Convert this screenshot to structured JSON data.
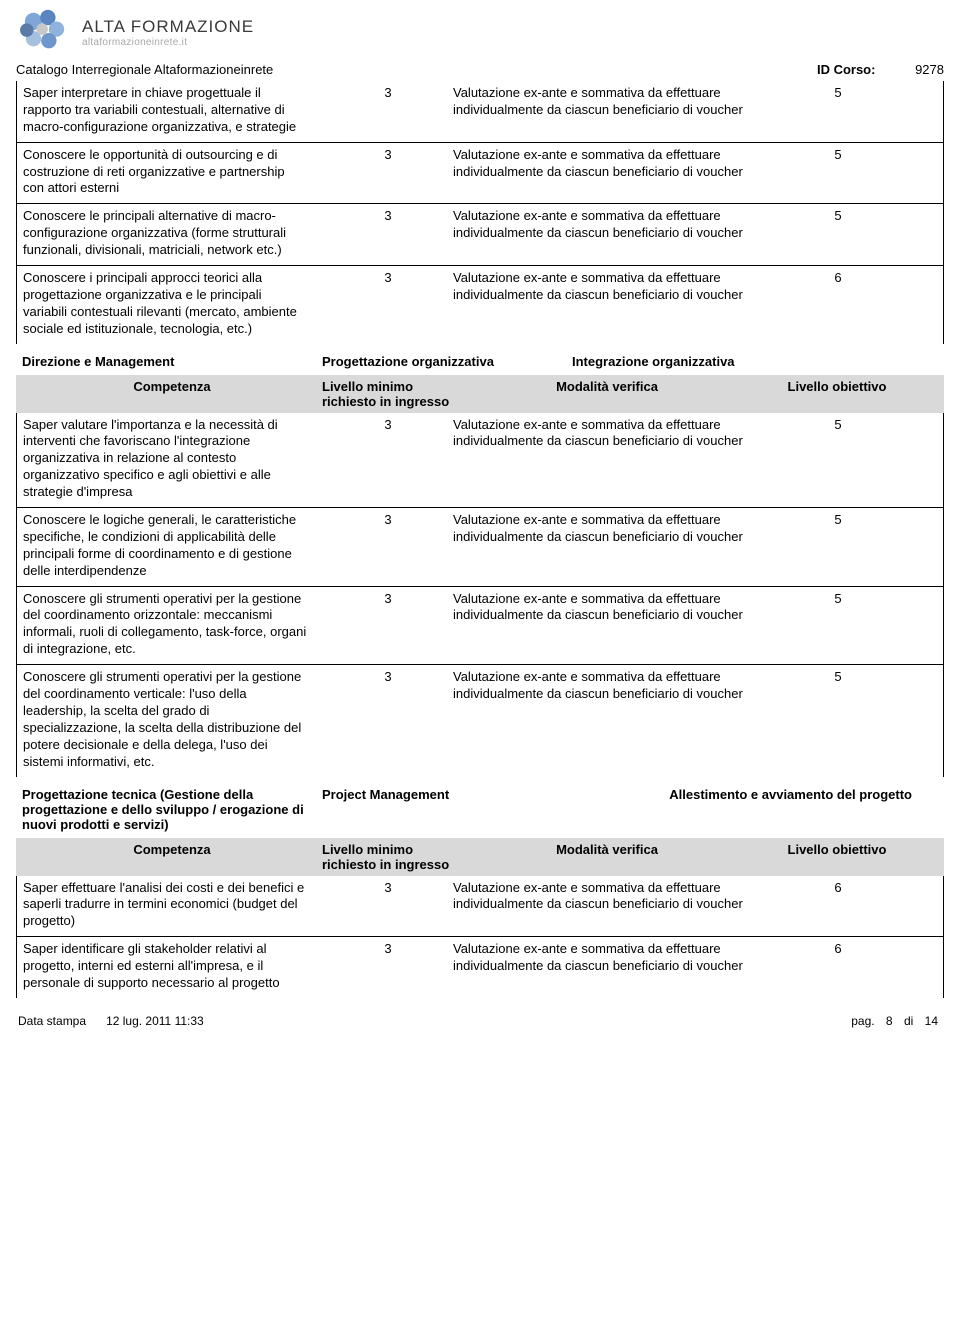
{
  "brand_main": "ALTA FORMAZIONE",
  "brand_sub": "altaformazioneinrete.it",
  "catalog_title": "Catalogo Interregionale Altaformazioneinrete",
  "id_corso_label": "ID Corso:",
  "id_corso_value": "9278",
  "verif_text": "Valutazione ex-ante e sommativa da effettuare individualmente da ciascun beneficiario di voucher",
  "top_rows": [
    {
      "comp": "Saper interpretare in chiave progettuale il rapporto tra variabili contestuali, alternative di macro-configurazione organizzativa, e strategie",
      "lvl": "3",
      "obj": "5"
    },
    {
      "comp": "Conoscere le opportunità di outsourcing e di costruzione di reti organizzative e partnership con attori esterni",
      "lvl": "3",
      "obj": "5"
    },
    {
      "comp": "Conoscere le principali alternative di macro-configurazione organizzativa (forme strutturali funzionali, divisionali, matriciali, network etc.)",
      "lvl": "3",
      "obj": "5"
    },
    {
      "comp": "Conoscere i principali approcci teorici alla progettazione organizzativa e le principali variabili contestuali rilevanti (mercato, ambiente sociale ed istituzionale, tecnologia, etc.)",
      "lvl": "3",
      "obj": "6"
    }
  ],
  "section1": {
    "a": "Direzione e Management",
    "b": "Progettazione organizzativa",
    "c": "Integrazione organizzativa"
  },
  "headers": {
    "h1": "Competenza",
    "h2": "Livello minimo richiesto in ingresso",
    "h3": "Modalità verifica",
    "h4": "Livello obiettivo"
  },
  "section1_rows": [
    {
      "comp": "Saper valutare l'importanza e la necessità di interventi che favoriscano l'integrazione organizzativa in relazione al contesto organizzativo specifico e agli obiettivi e alle strategie d'impresa",
      "lvl": "3",
      "obj": "5"
    },
    {
      "comp": "Conoscere le logiche generali, le caratteristiche specifiche, le condizioni di applicabilità delle principali forme di coordinamento e di gestione delle interdipendenze",
      "lvl": "3",
      "obj": "5"
    },
    {
      "comp": "Conoscere gli strumenti operativi per la gestione del coordinamento orizzontale: meccanismi informali, ruoli di collegamento, task-force, organi di integrazione, etc.",
      "lvl": "3",
      "obj": "5"
    },
    {
      "comp": "Conoscere gli strumenti operativi per la gestione del coordinamento verticale: l'uso della leadership, la scelta del grado di specializzazione, la scelta della distribuzione del potere decisionale e della delega, l'uso dei sistemi informativi, etc.",
      "lvl": "3",
      "obj": "5"
    }
  ],
  "section2": {
    "a": "Progettazione tecnica (Gestione della progettazione e dello sviluppo / erogazione di nuovi prodotti e servizi)",
    "b": "Project Management",
    "c": "Allestimento e avviamento del progetto"
  },
  "section2_rows": [
    {
      "comp": "Saper effettuare l'analisi dei costi e dei benefici e saperli tradurre in termini economici (budget del progetto)",
      "lvl": "3",
      "obj": "6"
    },
    {
      "comp": "Saper identificare gli stakeholder relativi al progetto, interni ed esterni all'impresa, e il personale di supporto necessario al progetto",
      "lvl": "3",
      "obj": "6"
    }
  ],
  "footer": {
    "data_stampa_label": "Data stampa",
    "data_stampa_value": "12 lug. 2011 11:33",
    "pag_label": "pag.",
    "pag_num": "8",
    "di_label": "di",
    "pag_total": "14"
  },
  "colors": {
    "header_bg": "#d9d9d9",
    "text": "#000000",
    "brand_grey": "#3a3a3a",
    "brand_sub": "#a8a8a8"
  }
}
